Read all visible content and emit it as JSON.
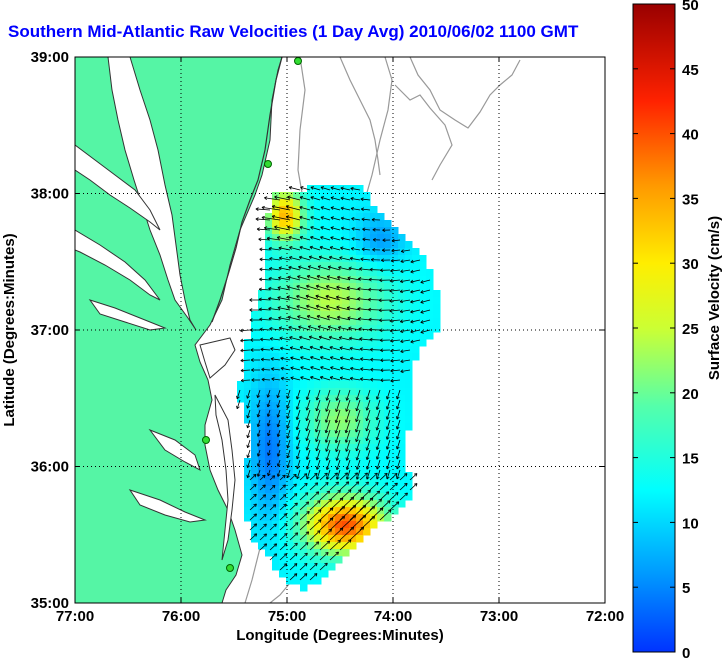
{
  "title": "Southern Mid-Atlantic Raw Velocities (1 Day Avg) 2010/06/02 1100 GMT",
  "map": {
    "xlabel": "Longitude (Degrees:Minutes)",
    "ylabel": "Latitude (Degrees:Minutes)",
    "x_ticks": [
      "77:00",
      "76:00",
      "75:00",
      "74:00",
      "73:00",
      "72:00"
    ],
    "y_ticks": [
      "39:00",
      "38:00",
      "37:00",
      "36:00",
      "35:00"
    ],
    "land_color": "#55f5a5",
    "coast_color": "#333333",
    "bathymetry_color": "#999999"
  },
  "colorbar": {
    "label": "Surface Velocity (cm/s)",
    "ticks": [
      "0",
      "5",
      "10",
      "15",
      "20",
      "25",
      "30",
      "35",
      "40",
      "45",
      "50"
    ],
    "min": 0,
    "max": 50,
    "colormap": "jet"
  }
}
